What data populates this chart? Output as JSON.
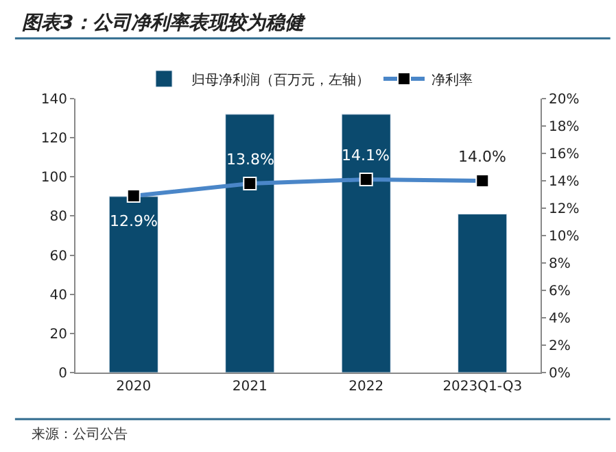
{
  "chart_data": {
    "type": "bar",
    "title": "图表3：公司净利率表现较为稳健",
    "categories": [
      "2020",
      "2021",
      "2022",
      "2023Q1-Q3"
    ],
    "series": [
      {
        "name": "归母净利润（百万元，左轴）",
        "color": "#0b4a6e",
        "values": [
          90,
          132,
          132,
          81
        ]
      },
      {
        "name": "净利率",
        "type": "line",
        "axis": "y2",
        "color": "#4a86c8",
        "values": [
          12.9,
          13.8,
          14.1,
          14.0
        ],
        "value_labels": [
          "12.9%",
          "13.8%",
          "14.1%",
          "14.0%"
        ]
      }
    ],
    "marker": "square",
    "line_style": "solid",
    "ylim": [
      0,
      140
    ],
    "yticks": [
      0,
      20,
      40,
      60,
      80,
      100,
      120,
      140
    ],
    "y2lim": [
      0,
      20
    ],
    "y2ticks": [
      {
        "value": 0,
        "label": "0%"
      },
      {
        "value": 2,
        "label": "2%"
      },
      {
        "value": 4,
        "label": "4%"
      },
      {
        "value": 6,
        "label": "6%"
      },
      {
        "value": 8,
        "label": "8%"
      },
      {
        "value": 10,
        "label": "10%"
      },
      {
        "value": 12,
        "label": "12%"
      },
      {
        "value": 14,
        "label": "14%"
      },
      {
        "value": 16,
        "label": "16%"
      },
      {
        "value": 18,
        "label": "18%"
      },
      {
        "value": 20,
        "label": "20%"
      }
    ],
    "legend": "top",
    "annotations": [
      "来源：公司公告"
    ]
  }
}
